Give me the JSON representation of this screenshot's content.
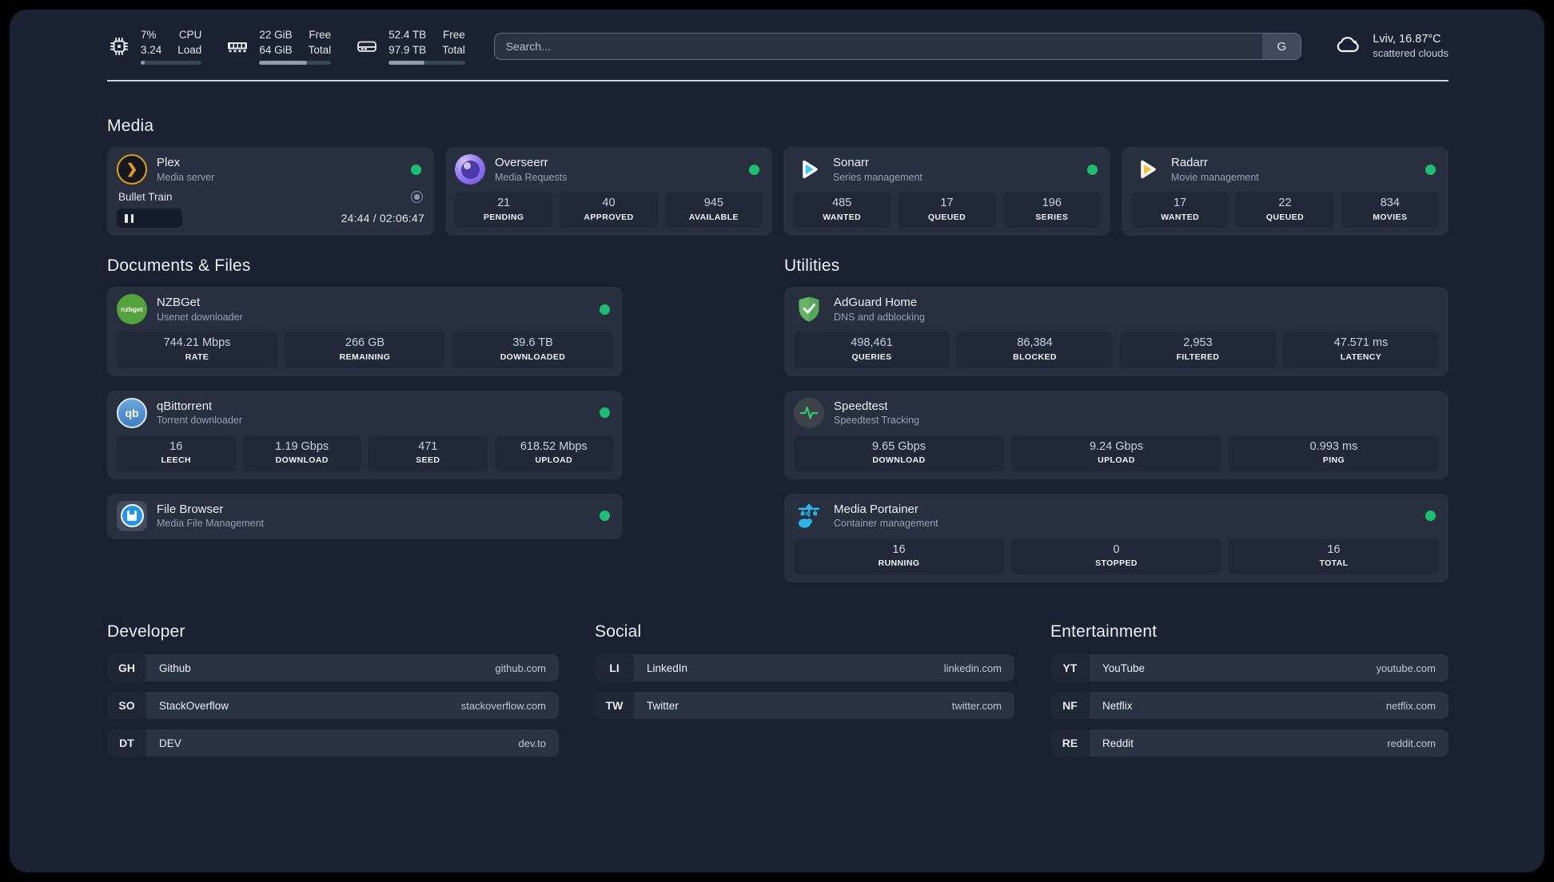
{
  "colors": {
    "status_online": "#1abf73",
    "plex_accent": "#e5a00d",
    "sonarr_accent": "#38c8f5",
    "radarr_accent": "#fbc02d",
    "adguard_accent": "#63b663",
    "portainer_accent": "#29b6e8"
  },
  "header": {
    "resources": [
      {
        "icon": "cpu-icon",
        "values": [
          "7%",
          "3.24"
        ],
        "labels": [
          "CPU",
          "Load"
        ],
        "progress": 7
      },
      {
        "icon": "memory-icon",
        "values": [
          "22 GiB",
          "64 GiB"
        ],
        "labels": [
          "Free",
          "Total"
        ],
        "progress": 66
      },
      {
        "icon": "disk-icon",
        "values": [
          "52.4 TB",
          "97.9 TB"
        ],
        "labels": [
          "Free",
          "Total"
        ],
        "progress": 47
      }
    ],
    "search": {
      "placeholder": "Search...",
      "button_label": "G"
    },
    "weather": {
      "icon": "cloud-icon",
      "location": "Lviv, 16.87°C",
      "condition": "scattered clouds"
    }
  },
  "media": {
    "title": "Media",
    "plex": {
      "name": "Plex",
      "subtitle": "Media server",
      "glyph": "❯",
      "now_playing": {
        "title": "Bullet Train",
        "time": "24:44 / 02:06:47"
      }
    },
    "overseerr": {
      "name": "Overseerr",
      "subtitle": "Media Requests",
      "stats": [
        {
          "value": "21",
          "label": "PENDING"
        },
        {
          "value": "40",
          "label": "APPROVED"
        },
        {
          "value": "945",
          "label": "AVAILABLE"
        }
      ]
    },
    "sonarr": {
      "name": "Sonarr",
      "subtitle": "Series management",
      "stats": [
        {
          "value": "485",
          "label": "WANTED"
        },
        {
          "value": "17",
          "label": "QUEUED"
        },
        {
          "value": "196",
          "label": "SERIES"
        }
      ]
    },
    "radarr": {
      "name": "Radarr",
      "subtitle": "Movie management",
      "stats": [
        {
          "value": "17",
          "label": "WANTED"
        },
        {
          "value": "22",
          "label": "QUEUED"
        },
        {
          "value": "834",
          "label": "MOVIES"
        }
      ]
    }
  },
  "documents": {
    "title": "Documents & Files",
    "nzbget": {
      "name": "NZBGet",
      "subtitle": "Usenet downloader",
      "badge": "nzbget",
      "stats": [
        {
          "value": "744.21 Mbps",
          "label": "RATE"
        },
        {
          "value": "266 GB",
          "label": "REMAINING"
        },
        {
          "value": "39.6 TB",
          "label": "DOWNLOADED"
        }
      ]
    },
    "qbittorrent": {
      "name": "qBittorrent",
      "subtitle": "Torrent downloader",
      "badge": "qb",
      "stats": [
        {
          "value": "16",
          "label": "LEECH"
        },
        {
          "value": "1.19 Gbps",
          "label": "DOWNLOAD"
        },
        {
          "value": "471",
          "label": "SEED"
        },
        {
          "value": "618.52 Mbps",
          "label": "UPLOAD"
        }
      ]
    },
    "filebrowser": {
      "name": "File Browser",
      "subtitle": "Media File Management"
    }
  },
  "utilities": {
    "title": "Utilities",
    "adguard": {
      "name": "AdGuard Home",
      "subtitle": "DNS and adblocking",
      "stats": [
        {
          "value": "498,461",
          "label": "QUERIES"
        },
        {
          "value": "86,384",
          "label": "BLOCKED"
        },
        {
          "value": "2,953",
          "label": "FILTERED"
        },
        {
          "value": "47.571 ms",
          "label": "LATENCY"
        }
      ]
    },
    "speedtest": {
      "name": "Speedtest",
      "subtitle": "Speedtest Tracking",
      "stats": [
        {
          "value": "9.65 Gbps",
          "label": "DOWNLOAD"
        },
        {
          "value": "9.24 Gbps",
          "label": "UPLOAD"
        },
        {
          "value": "0.993 ms",
          "label": "PING"
        }
      ]
    },
    "portainer": {
      "name": "Media Portainer",
      "subtitle": "Container management",
      "stats": [
        {
          "value": "16",
          "label": "RUNNING"
        },
        {
          "value": "0",
          "label": "STOPPED"
        },
        {
          "value": "16",
          "label": "TOTAL"
        }
      ]
    }
  },
  "bookmarks": {
    "developer": {
      "title": "Developer",
      "links": [
        {
          "abbr": "GH",
          "name": "Github",
          "url": "github.com"
        },
        {
          "abbr": "SO",
          "name": "StackOverflow",
          "url": "stackoverflow.com"
        },
        {
          "abbr": "DT",
          "name": "DEV",
          "url": "dev.to"
        }
      ]
    },
    "social": {
      "title": "Social",
      "links": [
        {
          "abbr": "LI",
          "name": "LinkedIn",
          "url": "linkedin.com"
        },
        {
          "abbr": "TW",
          "name": "Twitter",
          "url": "twitter.com"
        }
      ]
    },
    "entertainment": {
      "title": "Entertainment",
      "links": [
        {
          "abbr": "YT",
          "name": "YouTube",
          "url": "youtube.com"
        },
        {
          "abbr": "NF",
          "name": "Netflix",
          "url": "netflix.com"
        },
        {
          "abbr": "RE",
          "name": "Reddit",
          "url": "reddit.com"
        }
      ]
    }
  }
}
